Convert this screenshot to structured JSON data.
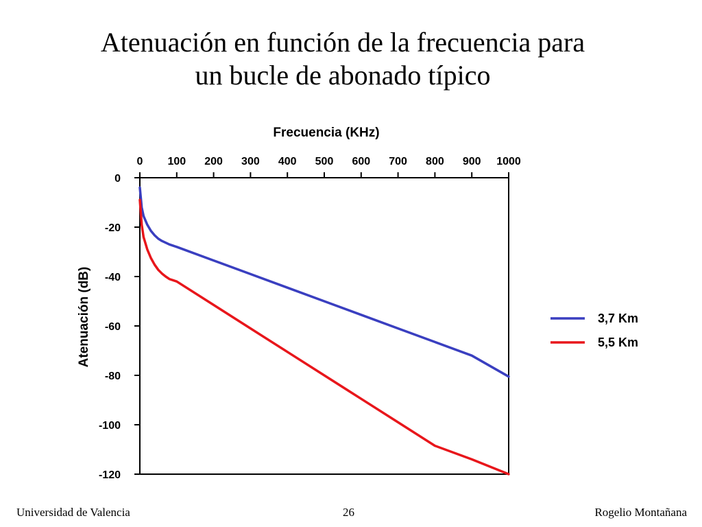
{
  "slide": {
    "title_line1": "Atenuación en función de la frecuencia para",
    "title_line2": "un bucle de abonado típico",
    "footer_left": "Universidad de Valencia",
    "footer_center": "26",
    "footer_right": "Rogelio Montañana"
  },
  "chart_data": {
    "type": "line",
    "title": "",
    "xlabel": "Frecuencia (KHz)",
    "ylabel": "Atenuación (dB)",
    "x_axis_position": "top",
    "xlim": [
      0,
      1000
    ],
    "ylim": [
      -120,
      0
    ],
    "x_ticks": [
      0,
      100,
      200,
      300,
      400,
      500,
      600,
      700,
      800,
      900,
      1000
    ],
    "x_tick_labels": [
      "0",
      "100",
      "200",
      "300",
      "400",
      "500",
      "600",
      "700",
      "800",
      "900",
      "1000"
    ],
    "y_ticks": [
      0,
      -20,
      -40,
      -60,
      -80,
      -100,
      -120
    ],
    "y_tick_labels": [
      "0",
      "-20",
      "-40",
      "-60",
      "-80",
      "-100",
      "-120"
    ],
    "grid": false,
    "legend_position": "right",
    "series": [
      {
        "name": "3,7 Km",
        "color": "#3a3fc0",
        "x": [
          0,
          5,
          10,
          20,
          30,
          40,
          50,
          60,
          70,
          80,
          100,
          200,
          300,
          400,
          500,
          600,
          700,
          800,
          900,
          1000
        ],
        "y": [
          -4,
          -12,
          -15.5,
          -19,
          -21.5,
          -23.3,
          -24.7,
          -25.6,
          -26.3,
          -27,
          -28,
          -33.5,
          -39,
          -44.5,
          -50,
          -55.5,
          -61,
          -66.5,
          -72,
          -80.5
        ]
      },
      {
        "name": "5,5 Km",
        "color": "#e8161b",
        "x": [
          0,
          5,
          10,
          20,
          30,
          40,
          50,
          60,
          70,
          80,
          100,
          200,
          300,
          400,
          500,
          600,
          700,
          800,
          900,
          1000
        ],
        "y": [
          -9,
          -19,
          -24,
          -29,
          -32.5,
          -35.2,
          -37.3,
          -38.8,
          -40,
          -41,
          -42,
          -51.5,
          -61,
          -70.5,
          -80,
          -89.5,
          -99,
          -108.5,
          -114,
          -120
        ]
      }
    ]
  }
}
